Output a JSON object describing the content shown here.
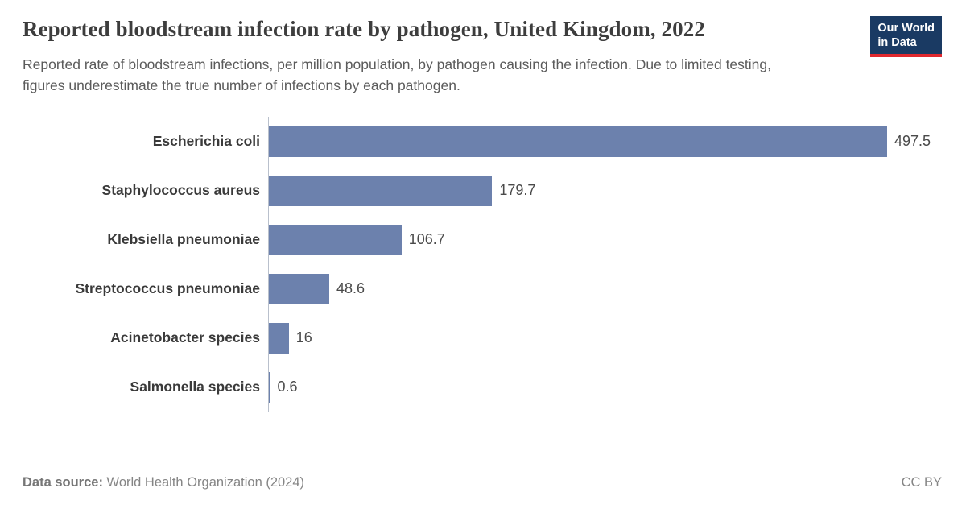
{
  "header": {
    "title": "Reported bloodstream infection rate by pathogen, United Kingdom, 2022",
    "subtitle": "Reported rate of bloodstream infections, per million population, by pathogen causing the infection. Due to limited testing, figures underestimate the true number of infections by each pathogen.",
    "logo": {
      "line1": "Our World",
      "line2": "in Data"
    }
  },
  "chart_data": {
    "type": "bar",
    "orientation": "horizontal",
    "title": "Reported bloodstream infection rate by pathogen, United Kingdom, 2022",
    "categories": [
      "Escherichia coli",
      "Staphylococcus aureus",
      "Klebsiella pneumoniae",
      "Streptococcus pneumoniae",
      "Acinetobacter species",
      "Salmonella species"
    ],
    "values": [
      497.5,
      179.7,
      106.7,
      48.6,
      16,
      0.6
    ],
    "value_labels": [
      "497.5",
      "179.7",
      "106.7",
      "48.6",
      "16",
      "0.6"
    ],
    "xlabel": "",
    "ylabel": "",
    "xlim": [
      0,
      497.5
    ],
    "grid": false,
    "legend": "none",
    "bar_color": "#6c81ad"
  },
  "theme": {
    "bar_color": "#6c81ad",
    "logo_bg": "#1a3a63",
    "logo_accent": "#e0282e",
    "axis_line": "#b9c0cc"
  },
  "footer": {
    "source_label": "Data source:",
    "source_text": " World Health Organization (2024)",
    "license": "CC BY"
  }
}
